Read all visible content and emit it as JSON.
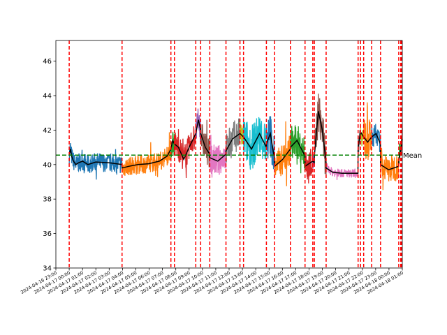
{
  "chart_data": {
    "type": "line",
    "xlim": [
      "2024-04-16 23:00",
      "2024-04-18 01:00"
    ],
    "ylim": [
      34,
      47.2
    ],
    "y_ticks": [
      34,
      36,
      38,
      40,
      42,
      44,
      46
    ],
    "y_tick_labels": [
      "34",
      "36",
      "38",
      "40",
      "42",
      "44",
      "46"
    ],
    "x_ticks": [
      "2024-04-16 23:00",
      "2024-04-17 00:00",
      "2024-04-17 01:00",
      "2024-04-17 02:00",
      "2024-04-17 03:00",
      "2024-04-17 04:00",
      "2024-04-17 05:00",
      "2024-04-17 06:00",
      "2024-04-17 07:00",
      "2024-04-17 08:00",
      "2024-04-17 09:00",
      "2024-04-17 10:00",
      "2024-04-17 11:00",
      "2024-04-17 12:00",
      "2024-04-17 13:00",
      "2024-04-17 14:00",
      "2024-04-17 15:00",
      "2024-04-17 16:00",
      "2024-04-17 17:00",
      "2024-04-17 18:00",
      "2024-04-17 19:00",
      "2024-04-17 20:00",
      "2024-04-17 21:00",
      "2024-04-17 22:00",
      "2024-04-17 23:00",
      "2024-04-18 00:00",
      "2024-04-18 01:00"
    ],
    "mean_line": {
      "label": "Mean",
      "value": 40.55,
      "color": "#008000"
    },
    "changepoint_color": "#ff0000",
    "changepoints": [
      "2024-04-17 00:00",
      "2024-04-17 03:58",
      "2024-04-17 07:38",
      "2024-04-17 07:54",
      "2024-04-17 09:30",
      "2024-04-17 09:52",
      "2024-04-17 10:33",
      "2024-04-17 11:46",
      "2024-04-17 12:49",
      "2024-04-17 13:05",
      "2024-04-17 14:48",
      "2024-04-17 15:25",
      "2024-04-17 16:36",
      "2024-04-17 17:42",
      "2024-04-17 18:17",
      "2024-04-17 18:24",
      "2024-04-17 19:17",
      "2024-04-17 21:41",
      "2024-04-17 21:52",
      "2024-04-17 22:06",
      "2024-04-17 22:42",
      "2024-04-17 23:22",
      "2024-04-18 00:44",
      "2024-04-18 00:53",
      "2024-04-18 00:57"
    ],
    "segments": [
      {
        "color": "#1f77b4",
        "start": "2024-04-17 00:00",
        "end": "2024-04-17 03:58",
        "level": 40.2,
        "noise": 0.55,
        "points": [
          [
            0,
            40.6
          ],
          [
            0.1,
            40.9
          ],
          [
            0.18,
            40.5
          ],
          [
            0.32,
            40.2
          ],
          [
            0.5,
            40.0
          ],
          [
            0.7,
            40.1
          ],
          [
            1.0,
            40.2
          ],
          [
            1.4,
            40.0
          ],
          [
            2.0,
            40.15
          ],
          [
            3.0,
            40.1
          ],
          [
            3.97,
            40.0
          ]
        ]
      },
      {
        "color": "#ff7f0e",
        "start": "2024-04-17 03:58",
        "end": "2024-04-17 07:38",
        "level": 40.0,
        "noise": 0.55,
        "points": [
          [
            0,
            39.8
          ],
          [
            0.5,
            39.9
          ],
          [
            1.2,
            40.0
          ],
          [
            2.0,
            40.05
          ],
          [
            2.8,
            40.2
          ],
          [
            3.4,
            40.5
          ],
          [
            3.66,
            40.9
          ]
        ]
      },
      {
        "color": "#2ca02c",
        "start": "2024-04-17 07:38",
        "end": "2024-04-17 07:54",
        "level": 41.0,
        "noise": 0.8,
        "points": [
          [
            0,
            40.9
          ],
          [
            0.13,
            41.4
          ],
          [
            0.26,
            41.2
          ]
        ]
      },
      {
        "color": "#d62728",
        "start": "2024-04-17 07:54",
        "end": "2024-04-17 09:30",
        "level": 41.0,
        "noise": 0.8,
        "points": [
          [
            0,
            41.2
          ],
          [
            0.3,
            41.0
          ],
          [
            0.7,
            40.3
          ],
          [
            1.1,
            41.0
          ],
          [
            1.6,
            41.8
          ]
        ]
      },
      {
        "color": "#9467bd",
        "start": "2024-04-17 09:30",
        "end": "2024-04-17 09:52",
        "level": 42.0,
        "noise": 0.8,
        "points": [
          [
            0,
            41.8
          ],
          [
            0.2,
            42.6
          ],
          [
            0.36,
            42.0
          ]
        ]
      },
      {
        "color": "#8c564b",
        "start": "2024-04-17 09:52",
        "end": "2024-04-17 10:33",
        "level": 41.2,
        "noise": 0.9,
        "points": [
          [
            0,
            41.8
          ],
          [
            0.35,
            41.0
          ],
          [
            0.68,
            40.6
          ]
        ]
      },
      {
        "color": "#e377c2",
        "start": "2024-04-17 10:33",
        "end": "2024-04-17 11:46",
        "level": 40.3,
        "noise": 0.9,
        "points": [
          [
            0,
            40.4
          ],
          [
            0.6,
            40.2
          ],
          [
            1.21,
            40.6
          ]
        ]
      },
      {
        "color": "#7f7f7f",
        "start": "2024-04-17 11:46",
        "end": "2024-04-17 12:49",
        "level": 41.3,
        "noise": 1.0,
        "points": [
          [
            0,
            40.8
          ],
          [
            0.5,
            41.5
          ],
          [
            1.05,
            41.8
          ]
        ]
      },
      {
        "color": "#bcbd22",
        "start": "2024-04-17 12:49",
        "end": "2024-04-17 13:05",
        "level": 41.8,
        "noise": 0.8,
        "points": [
          [
            0,
            41.8
          ],
          [
            0.26,
            41.6
          ]
        ]
      },
      {
        "color": "#17becf",
        "start": "2024-04-17 13:05",
        "end": "2024-04-17 14:48",
        "level": 41.0,
        "noise": 1.3,
        "points": [
          [
            0,
            41.6
          ],
          [
            0.6,
            40.9
          ],
          [
            1.2,
            41.8
          ],
          [
            1.71,
            41.0
          ]
        ]
      },
      {
        "color": "#1f77b4",
        "start": "2024-04-17 14:48",
        "end": "2024-04-17 15:25",
        "level": 41.3,
        "noise": 1.3,
        "points": [
          [
            0,
            41.2
          ],
          [
            0.3,
            41.8
          ],
          [
            0.61,
            40.3
          ]
        ]
      },
      {
        "color": "#ff7f0e",
        "start": "2024-04-17 15:25",
        "end": "2024-04-17 16:36",
        "level": 40.2,
        "noise": 0.9,
        "points": [
          [
            0,
            39.9
          ],
          [
            0.6,
            40.3
          ],
          [
            1.18,
            40.9
          ]
        ]
      },
      {
        "color": "#2ca02c",
        "start": "2024-04-17 16:36",
        "end": "2024-04-17 17:42",
        "level": 41.0,
        "noise": 1.0,
        "points": [
          [
            0,
            41.0
          ],
          [
            0.5,
            41.4
          ],
          [
            1.1,
            40.5
          ]
        ]
      },
      {
        "color": "#d62728",
        "start": "2024-04-17 17:42",
        "end": "2024-04-17 18:17",
        "level": 40.0,
        "noise": 0.8,
        "points": [
          [
            0,
            39.9
          ],
          [
            0.58,
            40.2
          ]
        ]
      },
      {
        "color": "#9467bd",
        "start": "2024-04-17 18:17",
        "end": "2024-04-17 18:24",
        "level": 40.0,
        "noise": 0.6,
        "points": [
          [
            0,
            40.2
          ],
          [
            0.11,
            40.1
          ]
        ]
      },
      {
        "color": "#8c564b",
        "start": "2024-04-17 18:24",
        "end": "2024-04-17 19:17",
        "level": 42.0,
        "noise": 1.2,
        "points": [
          [
            0,
            40.5
          ],
          [
            0.3,
            43.1
          ],
          [
            0.6,
            42.0
          ],
          [
            0.88,
            40.1
          ]
        ]
      },
      {
        "color": "#e377c2",
        "start": "2024-04-17 19:17",
        "end": "2024-04-17 21:41",
        "level": 39.5,
        "noise": 0.25,
        "points": [
          [
            0,
            39.8
          ],
          [
            0.5,
            39.55
          ],
          [
            1.2,
            39.5
          ],
          [
            2.39,
            39.5
          ]
        ]
      },
      {
        "color": "#7f7f7f",
        "start": "2024-04-17 21:41",
        "end": "2024-04-17 21:52",
        "level": 41.6,
        "noise": 0.6,
        "points": [
          [
            0,
            41.0
          ],
          [
            0.18,
            41.9
          ]
        ]
      },
      {
        "color": "#bcbd22",
        "start": "2024-04-17 21:52",
        "end": "2024-04-17 22:06",
        "level": 41.6,
        "noise": 0.7,
        "points": [
          [
            0,
            41.9
          ],
          [
            0.23,
            41.6
          ]
        ]
      },
      {
        "color": "#ff7f0e",
        "start": "2024-04-17 22:06",
        "end": "2024-04-17 22:42",
        "level": 41.2,
        "noise": 1.2,
        "points": [
          [
            0,
            41.6
          ],
          [
            0.3,
            41.3
          ],
          [
            0.6,
            41.6
          ]
        ]
      },
      {
        "color": "#1f77b4",
        "start": "2024-04-17 22:42",
        "end": "2024-04-17 23:22",
        "level": 41.4,
        "noise": 0.6,
        "points": [
          [
            0,
            41.6
          ],
          [
            0.33,
            41.8
          ],
          [
            0.66,
            41.2
          ]
        ]
      },
      {
        "color": "#ff7f0e",
        "start": "2024-04-17 23:22",
        "end": "2024-04-18 00:44",
        "level": 39.8,
        "noise": 0.8,
        "points": [
          [
            0,
            40.0
          ],
          [
            0.6,
            39.7
          ],
          [
            1.36,
            39.9
          ]
        ]
      },
      {
        "color": "#2ca02c",
        "start": "2024-04-18 00:44",
        "end": "2024-04-18 00:53",
        "level": 40.5,
        "noise": 0.8,
        "points": [
          [
            0,
            40.2
          ],
          [
            0.15,
            40.8
          ]
        ]
      },
      {
        "color": "#d62728",
        "start": "2024-04-18 00:53",
        "end": "2024-04-18 01:00",
        "level": 41.0,
        "noise": 0.8,
        "points": [
          [
            0,
            40.8
          ],
          [
            0.11,
            41.5
          ]
        ]
      }
    ],
    "rolling_mean_color": "#000000"
  }
}
